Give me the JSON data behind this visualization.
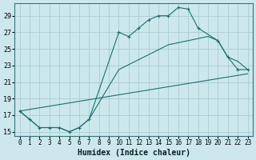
{
  "xlabel": "Humidex (Indice chaleur)",
  "bg_color": "#cce8ec",
  "grid_color": "#aaccd2",
  "line_color": "#1a7070",
  "xlim": [
    -0.5,
    23.5
  ],
  "ylim": [
    14.5,
    30.5
  ],
  "yticks": [
    15,
    17,
    19,
    21,
    23,
    25,
    27,
    29
  ],
  "xticks": [
    0,
    1,
    2,
    3,
    4,
    5,
    6,
    7,
    8,
    9,
    10,
    11,
    12,
    13,
    14,
    15,
    16,
    17,
    18,
    19,
    20,
    21,
    22,
    23
  ],
  "line1_x": [
    0,
    1,
    2,
    3,
    4,
    5,
    6,
    7,
    10,
    11,
    12,
    13,
    14,
    15,
    16,
    17,
    18,
    20,
    21,
    22,
    23
  ],
  "line1_y": [
    17.5,
    16.5,
    15.5,
    15.5,
    15.5,
    15.0,
    15.5,
    16.5,
    27.0,
    26.5,
    27.5,
    28.5,
    29.0,
    29.0,
    30.0,
    29.8,
    27.5,
    26.0,
    24.0,
    22.5,
    22.5
  ],
  "line2_x": [
    0,
    1,
    2,
    3,
    4,
    5,
    6,
    7,
    10,
    15,
    19,
    20,
    21,
    22,
    23
  ],
  "line2_y": [
    17.5,
    16.5,
    15.5,
    15.5,
    15.5,
    15.0,
    15.5,
    16.5,
    22.5,
    25.5,
    26.5,
    26.0,
    24.0,
    23.5,
    22.5
  ],
  "line3_x": [
    0,
    23
  ],
  "line3_y": [
    17.5,
    22.0
  ]
}
